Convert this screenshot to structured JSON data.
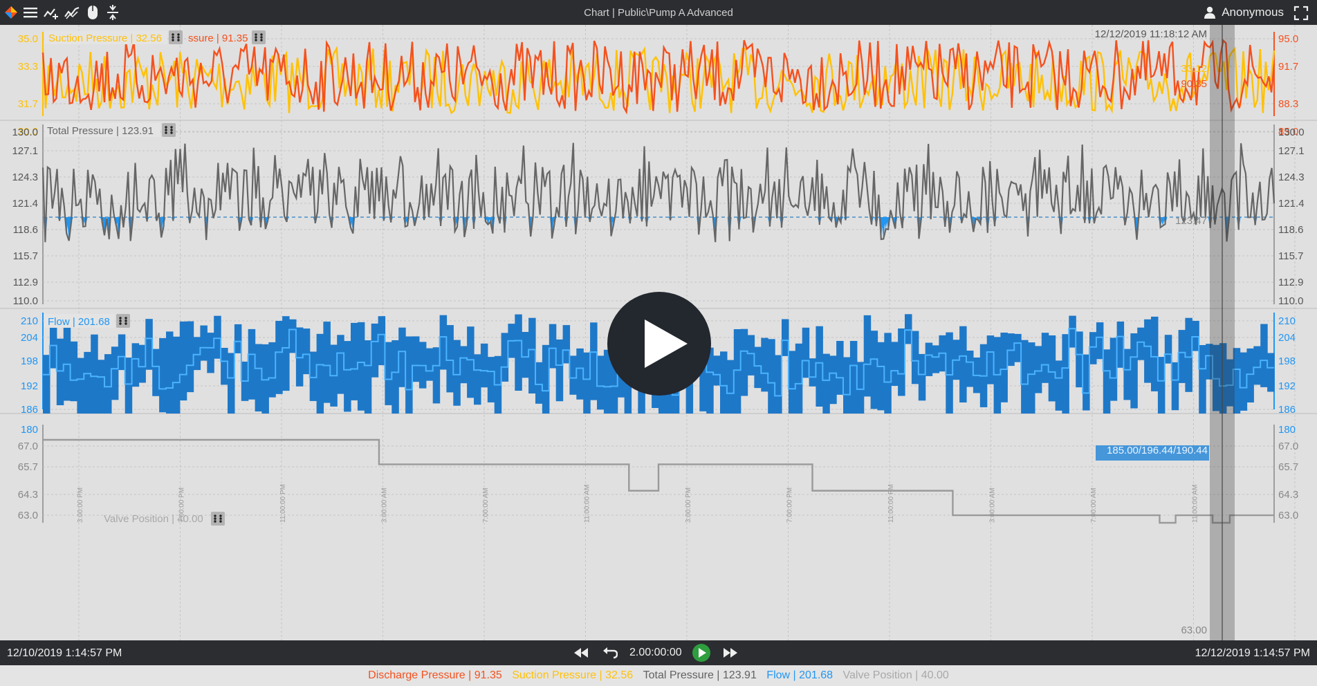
{
  "app": {
    "title": "Chart | Public\\Pump A Advanced",
    "user": "Anonymous"
  },
  "toolbar_icons": [
    "app-logo-icon",
    "menu-icon",
    "add-trend-icon",
    "trend-icon",
    "mouse-icon",
    "compress-icon"
  ],
  "panels": [
    {
      "label_a": "Suction Pressure | 32.56",
      "label_b": "ssure | 91.35",
      "timestamp": "12/12/2019 11:18:12 AM",
      "left_ticks": [
        "35.0",
        "33.3",
        "31.7",
        "30.0"
      ],
      "right_ticks": [
        "95.0",
        "91.7",
        "88.3",
        "85.0"
      ],
      "cursor_values": [
        "33.12",
        "90.35"
      ]
    },
    {
      "label": "Total Pressure | 123.91",
      "ticks": [
        "130.0",
        "127.1",
        "124.3",
        "121.4",
        "118.6",
        "115.7",
        "112.9",
        "110.0"
      ],
      "cursor_value": "123.47"
    },
    {
      "label": "Flow | 201.68",
      "ticks": [
        "210",
        "204",
        "198",
        "192",
        "186",
        "180"
      ],
      "cursor_value": "185.00/196.44/190.44"
    },
    {
      "label": "Valve Position | 40.00",
      "ticks": [
        "67.0",
        "65.7",
        "64.3",
        "63.0"
      ],
      "cursor_value": "63.00"
    }
  ],
  "x_ticks": [
    "3:00:00 PM",
    "7:00:00 PM",
    "11:00:00 PM",
    "3:00:00 AM",
    "7:00:00 AM",
    "11:00:00 AM",
    "3:00:00 PM",
    "7:00:00 PM",
    "11:00:00 PM",
    "3:00:00 AM",
    "7:00:00 AM",
    "11:00:00 AM"
  ],
  "playback": {
    "start": "12/10/2019 1:14:57 PM",
    "end": "12/12/2019 1:14:57 PM",
    "duration": "2.00:00:00"
  },
  "legend": [
    {
      "label": "Discharge Pressure | 91.35",
      "color": "#f4511e"
    },
    {
      "label": "Suction Pressure | 32.56",
      "color": "#ffc107"
    },
    {
      "label": "Total Pressure | 123.91",
      "color": "#616161"
    },
    {
      "label": "Flow | 201.68",
      "color": "#2196f3"
    },
    {
      "label": "Valve Position | 40.00",
      "color": "#a8a8a8"
    }
  ],
  "colors": {
    "discharge": "#f4511e",
    "suction": "#ffc107",
    "total": "#616161",
    "flow": "#2196f3",
    "flow_band": "#1e78c8",
    "valve": "#9a9a9a"
  },
  "chart_data": [
    {
      "type": "line",
      "series": [
        {
          "name": "Suction Pressure",
          "y_range": [
            30.0,
            35.0
          ]
        },
        {
          "name": "Discharge Pressure",
          "y_range": [
            85.0,
            95.0
          ]
        }
      ],
      "ylim_left": [
        30.0,
        35.0
      ],
      "ylim_right": [
        85.0,
        95.0
      ]
    },
    {
      "type": "line",
      "series": [
        {
          "name": "Total Pressure",
          "y_range": [
            117.0,
            129.0
          ]
        }
      ],
      "ylim": [
        110.0,
        130.0
      ],
      "threshold": 120.0
    },
    {
      "type": "area",
      "series": [
        {
          "name": "Flow",
          "y_range": [
            185.0,
            210.0
          ]
        }
      ],
      "ylim": [
        180,
        210
      ]
    },
    {
      "type": "line",
      "series": [
        {
          "name": "Valve Position",
          "steps": [
            {
              "x": 0.0,
              "y": 67.0
            },
            {
              "x": 0.273,
              "y": 65.7
            },
            {
              "x": 0.476,
              "y": 64.3
            },
            {
              "x": 0.5,
              "y": 65.7
            },
            {
              "x": 0.625,
              "y": 64.3
            },
            {
              "x": 0.739,
              "y": 63.0
            },
            {
              "x": 0.907,
              "y": 62.6
            },
            {
              "x": 0.92,
              "y": 63.0
            },
            {
              "x": 0.95,
              "y": 62.6
            },
            {
              "x": 0.964,
              "y": 63.0
            }
          ]
        }
      ],
      "ylim": [
        62.6,
        67.0
      ]
    }
  ]
}
